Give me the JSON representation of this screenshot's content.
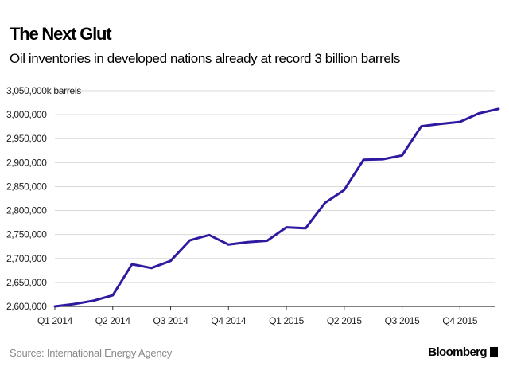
{
  "header": {
    "title": "The Next Glut",
    "subtitle": "Oil inventories in developed nations already at record 3 billion barrels"
  },
  "footer": {
    "source": "Source: International Energy Agency",
    "brand": "Bloomberg",
    "brand_icon": "bloomberg-logo-icon"
  },
  "colors": {
    "line": "#2e1aa0",
    "grid": "#d9d9d9",
    "axis": "#333333"
  },
  "chart_data": {
    "type": "line",
    "title": "The Next Glut",
    "subtitle": "Oil inventories in developed nations already at record 3 billion barrels",
    "ylabel": "",
    "xlabel": "",
    "ylim": [
      2600000,
      3050000
    ],
    "xlim": [
      0,
      22.8
    ],
    "grid": true,
    "y_ticks": [
      2600000,
      2650000,
      2700000,
      2750000,
      2800000,
      2850000,
      2900000,
      2950000,
      3000000,
      3050000
    ],
    "y_tick_labels": [
      "2,600,000",
      "2,650,000",
      "2,700,000",
      "2,750,000",
      "2,800,000",
      "2,850,000",
      "2,900,000",
      "2,950,000",
      "3,000,000",
      "3,050,000k barrels"
    ],
    "x_ticks": [
      0,
      3,
      6,
      9,
      12,
      15,
      18,
      21
    ],
    "x_tick_labels": [
      "Q1 2014",
      "Q2 2014",
      "Q3 2014",
      "Q4 2014",
      "Q1 2015",
      "Q2 2015",
      "Q3 2015",
      "Q4 2015"
    ],
    "series": [
      {
        "x": [
          0,
          1,
          2,
          3,
          4,
          5,
          6,
          7,
          8,
          9,
          10,
          11,
          12,
          13,
          14,
          15,
          16,
          17,
          18,
          19,
          20,
          21,
          22,
          23
        ],
        "values": [
          2600000,
          2605000,
          2612000,
          2623000,
          2688000,
          2680000,
          2695000,
          2738000,
          2749000,
          2729000,
          2734000,
          2737000,
          2765000,
          2763000,
          2816000,
          2843000,
          2906000,
          2907000,
          2915000,
          2976000,
          2981000,
          2985000,
          3003000,
          3012000
        ]
      }
    ]
  }
}
